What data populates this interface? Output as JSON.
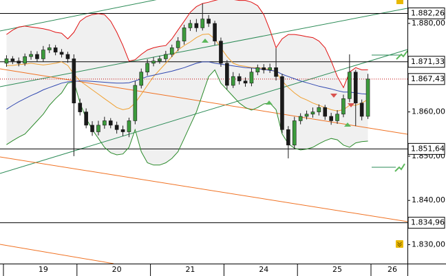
{
  "chart_data": {
    "type": "candlestick",
    "categories": [
      null,
      null,
      null,
      null,
      null,
      null,
      "19",
      null,
      null,
      null,
      null,
      null,
      null,
      null,
      null,
      null,
      null,
      null,
      "20",
      null,
      null,
      null,
      null,
      null,
      null,
      null,
      null,
      null,
      null,
      null,
      "21",
      null,
      null,
      null,
      null,
      null,
      null,
      null,
      null,
      null,
      null,
      null,
      "24",
      null,
      null,
      null,
      null,
      null,
      null,
      null,
      null,
      null,
      null,
      null,
      "25",
      null,
      null,
      null,
      null,
      null,
      null,
      null,
      null,
      null,
      null,
      null,
      "26"
    ],
    "open": [
      1871,
      1872,
      1871.5,
      1871,
      1872.5,
      1873,
      1872,
      1874,
      1874.5,
      1873.5,
      1873,
      1872,
      1862,
      1860,
      1857,
      1855.5,
      1857,
      1858,
      1857,
      1856,
      1855.5,
      1858,
      1866,
      1869,
      1871,
      1871.5,
      1872,
      1873,
      1874.5,
      1876,
      1879,
      1880,
      1879,
      1881,
      1880,
      1876,
      1871,
      1866,
      1868,
      1867,
      1866.5,
      1869,
      1870,
      1869.5,
      1870,
      1868,
      1856,
      1852.5,
      1858,
      1859,
      1859.5,
      1860,
      1861,
      1859,
      1858,
      1859.5,
      1863,
      1869,
      1862,
      1859,
      null,
      null,
      null,
      null,
      null,
      null,
      null
    ],
    "high": [
      1872.8,
      1872.6,
      1872.3,
      1873.2,
      1873.8,
      1873.7,
      1874.9,
      1875.3,
      1875.1,
      1874.2,
      1873.6,
      1873,
      1863,
      1860.8,
      1857.9,
      1858,
      1858.9,
      1858.6,
      1857.8,
      1856.9,
      1858.7,
      1867,
      1869.8,
      1871.9,
      1872.4,
      1872.7,
      1873.8,
      1875.2,
      1876.9,
      1879.7,
      1880.8,
      1881,
      1884.5,
      1881.9,
      1880.6,
      1876.8,
      1871.7,
      1869,
      1868.7,
      1867.8,
      1869.9,
      1870.7,
      1870.8,
      1870.9,
      1874.4,
      1868.6,
      1856.8,
      1858.9,
      1859.7,
      1860.3,
      1861,
      1861.7,
      1861.6,
      1859.8,
      1860.4,
      1863.9,
      1873,
      1869.5,
      1862.8,
      1868.6,
      null,
      null,
      null,
      null,
      null,
      null,
      null
    ],
    "low": [
      1870.2,
      1870.8,
      1870.3,
      1870.4,
      1871.8,
      1871.3,
      1871.4,
      1873.3,
      1872.8,
      1872.3,
      1871.1,
      1850,
      1859.2,
      1856.3,
      1854.6,
      1854.7,
      1856.2,
      1856.3,
      1855.1,
      1854.5,
      1854.3,
      1857.2,
      1865.3,
      1868.2,
      1870.3,
      1870.9,
      1871.2,
      1872.4,
      1873.7,
      1875.2,
      1878.3,
      1878.1,
      1878.4,
      1879.2,
      1875.1,
      1870.2,
      1865.1,
      1865.4,
      1866.2,
      1865.7,
      1865.8,
      1868.3,
      1868.7,
      1868.8,
      1867.1,
      1855.2,
      1849.5,
      1851.7,
      1857.2,
      1858.3,
      1858.7,
      1859.2,
      1858.2,
      1857.1,
      1857.3,
      1858.8,
      1862.2,
      1856.8,
      1858.1,
      1858.4,
      null,
      null,
      null,
      null,
      null,
      null,
      null
    ],
    "close": [
      1872,
      1871.5,
      1871,
      1872.5,
      1873,
      1872,
      1874,
      1874.5,
      1873.5,
      1873,
      1872,
      1862,
      1860,
      1857,
      1855.5,
      1857,
      1858,
      1857,
      1856,
      1855.5,
      1858,
      1866,
      1869,
      1871,
      1871.5,
      1872,
      1873,
      1874.5,
      1876,
      1879,
      1880,
      1879,
      1881,
      1880,
      1876,
      1871,
      1866,
      1868,
      1867,
      1866.5,
      1869,
      1870,
      1869.5,
      1870,
      1868,
      1856,
      1852.5,
      1858,
      1859,
      1859.5,
      1860,
      1861,
      1859,
      1858,
      1859.5,
      1863,
      1869,
      1862,
      1859,
      1867.43,
      null,
      null,
      null,
      null,
      null,
      null,
      null
    ],
    "up_color": "#3c9b3c",
    "down_color": "#1a1a1a",
    "overlays": [
      {
        "color": "#e01010",
        "values": [
          1877.5,
          1878.5,
          1879.2,
          1879.4,
          1879.2,
          1879,
          1878.8,
          1878.5,
          1878,
          1877.8,
          1876.5,
          1878,
          1880.5,
          1881.5,
          1882,
          1882.2,
          1882,
          1880.5,
          1878,
          1875,
          1871.5,
          1871.8,
          1873,
          1874,
          1874.5,
          1874.8,
          1875,
          1876.5,
          1878.5,
          1880.5,
          1882.5,
          1883.8,
          1884.5,
          1884.8,
          1885.2,
          1885.5,
          1885.5,
          1885.4,
          1885.2,
          1885.2,
          1884.8,
          1884,
          1882,
          1878.5,
          1874.5,
          1876.5,
          1877.5,
          1877.5,
          1877.3,
          1877,
          1876.8,
          1876,
          1874.5,
          1871.5,
          1868,
          1865.5,
          1869,
          1870,
          1869.5,
          1869.5,
          null,
          null,
          null,
          null,
          null,
          null,
          null
        ]
      },
      {
        "color": "#2a8a2a",
        "values": [
          1852.6,
          1853.5,
          1854.3,
          1855,
          1856.5,
          1858,
          1859.5,
          1861.5,
          1863,
          1864.3,
          1866.5,
          1866.8,
          1862,
          1858.5,
          1856,
          1854,
          1852,
          1850.8,
          1850.3,
          1850.5,
          1852,
          1856,
          1851,
          1848.5,
          1848,
          1848,
          1848.5,
          1849.5,
          1851,
          1854,
          1857,
          1860,
          1864,
          1868,
          1869.5,
          1866.5,
          1865,
          1863.5,
          1862,
          1861,
          1860.4,
          1861,
          1861.8,
          1862,
          1860.5,
          1855,
          1852.8,
          1851.8,
          1851.4,
          1851.6,
          1852,
          1852.8,
          1853.5,
          1854,
          1853.7,
          1852.5,
          1852,
          1853,
          1853.3,
          1853.4,
          null,
          null,
          null,
          null,
          null,
          null,
          null
        ]
      },
      {
        "color": "#f0a030",
        "values": [
          1870.5,
          1870.5,
          1870.7,
          1870.8,
          1871,
          1870.8,
          1870.6,
          1870.8,
          1871,
          1871.3,
          1870.5,
          1868.5,
          1867,
          1866,
          1865,
          1864,
          1863,
          1862,
          1861,
          1860.5,
          1860.8,
          1862,
          1864,
          1866,
          1868,
          1869.5,
          1871,
          1872.5,
          1874,
          1875,
          1875.8,
          1876.8,
          1877.5,
          1877.6,
          1876.5,
          1874.5,
          1872.5,
          1871,
          1870.5,
          1870.3,
          1870,
          1870,
          1869.8,
          1869.6,
          1869,
          1867,
          1865.5,
          1864.3,
          1863.3,
          1862.7,
          1862,
          1861.5,
          1861,
          1860.5,
          1860.2,
          1860.5,
          1861.5,
          1861.5,
          1862,
          1862.8,
          null,
          null,
          null,
          null,
          null,
          null,
          null
        ]
      },
      {
        "color": "#3048b0",
        "values": [
          1860.6,
          1861.5,
          1862.3,
          1863,
          1863.7,
          1864.3,
          1865,
          1865.5,
          1866,
          1866.5,
          1866.8,
          1866.9,
          1867,
          1867,
          1866.9,
          1866.8,
          1866.7,
          1866.6,
          1866.5,
          1866.5,
          1866.6,
          1867,
          1867.5,
          1868,
          1868.3,
          1868.6,
          1868.9,
          1869.2,
          1869.6,
          1870,
          1870.5,
          1871,
          1871.3,
          1871.3,
          1871,
          1870.8,
          1870.6,
          1870.4,
          1870.2,
          1870,
          1869.9,
          1869.8,
          1869.6,
          1869.4,
          1869.2,
          1868.5,
          1868,
          1867.5,
          1867,
          1866.6,
          1866.2,
          1865.8,
          1865.5,
          1865.2,
          1864.8,
          1864.5,
          1864.5,
          1864.3,
          1864.1,
          1864,
          null,
          null,
          null,
          null,
          null,
          null,
          null
        ]
      }
    ],
    "ylim": [
      1825.72,
      1885.29
    ],
    "yticks": [
      {
        "value": 1880,
        "label": "1.880,00"
      },
      {
        "value": 1860,
        "label": "1.860,00"
      },
      {
        "value": 1850,
        "label": "1.850,00"
      },
      {
        "value": 1840,
        "label": "1.840,00"
      },
      {
        "value": 1830,
        "label": "1.830,00"
      }
    ],
    "levels": [
      {
        "value": 1882.26,
        "label": "1.882,26"
      },
      {
        "value": 1871.33,
        "label": "1.871,33"
      },
      {
        "value": 1851.64,
        "label": "1.851,64"
      },
      {
        "value": 1834.96,
        "label": "1.834,96"
      }
    ],
    "last_price": {
      "value": 1867.43,
      "label": "1.867,43",
      "color": "#c00000"
    }
  }
}
